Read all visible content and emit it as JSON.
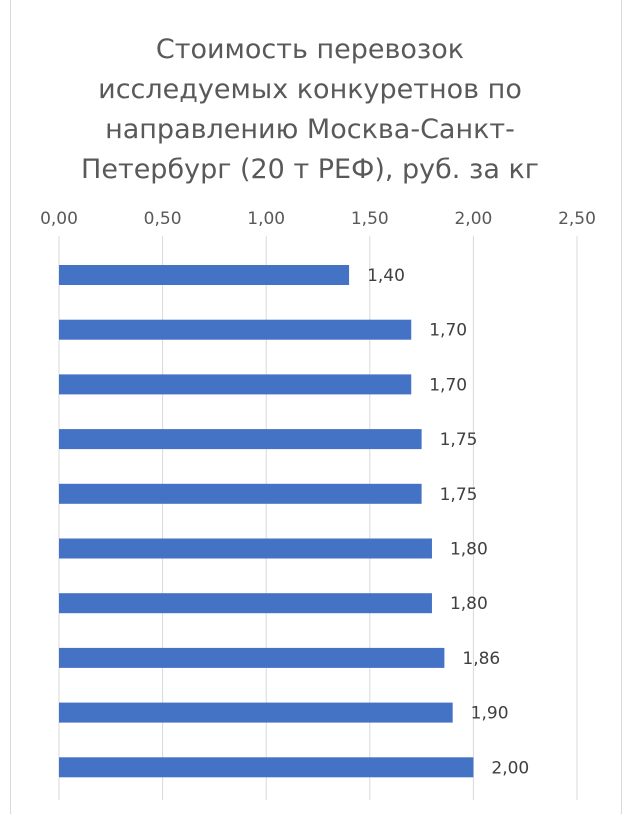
{
  "chart_data": {
    "type": "bar",
    "orientation": "horizontal",
    "title": "Стоимость перевозок исследуемых конкуретнов по направлению Москва-Санкт-Петербург (20 т РЕФ), руб. за кг",
    "title_lines": [
      "Стоимость перевозок",
      "исследуемых конкуретнов по",
      "направлению Москва-Санкт-",
      "Петербург (20 т РЕФ), руб. за кг"
    ],
    "xlim": [
      0,
      2.5
    ],
    "xticks": [
      0,
      0.5,
      1.0,
      1.5,
      2.0,
      2.5
    ],
    "xtick_labels": [
      "0,00",
      "0,50",
      "1,00",
      "1,50",
      "2,00",
      "2,50"
    ],
    "x_axis_position": "top",
    "grid": true,
    "legend": "none",
    "bar_color": "#4472c4",
    "values": [
      1.4,
      1.7,
      1.7,
      1.75,
      1.75,
      1.8,
      1.8,
      1.86,
      1.9,
      2.0
    ],
    "value_labels": [
      "1,40",
      "1,70",
      "1,70",
      "1,75",
      "1,75",
      "1,80",
      "1,80",
      "1,86",
      "1,90",
      "2,00"
    ]
  }
}
